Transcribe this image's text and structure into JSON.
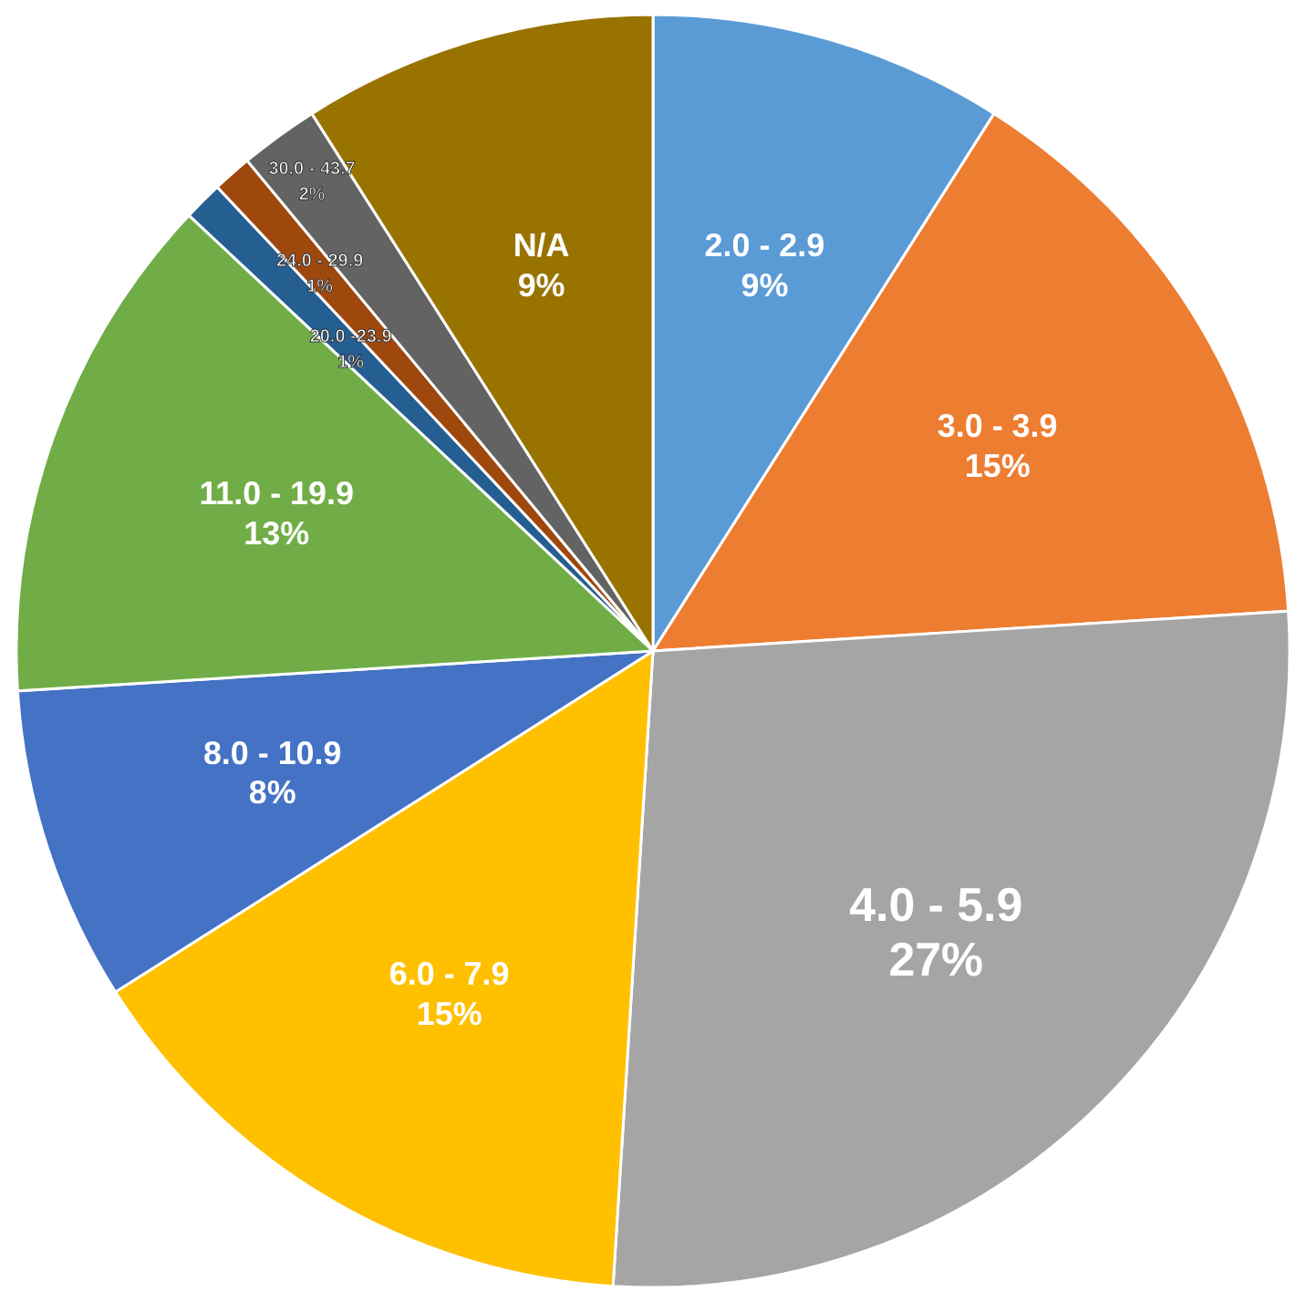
{
  "chart_data": {
    "type": "pie",
    "categories": [
      "2.0 - 2.9",
      "3.0 - 3.9",
      "4.0 - 5.9",
      "6.0 - 7.9",
      "8.0 - 10.9",
      "11.0 - 19.9",
      "20.0 -23.9",
      "24.0 - 29.9",
      "30.0 - 43.7",
      "N/A"
    ],
    "values": [
      9,
      15,
      27,
      15,
      8,
      13,
      1,
      1,
      2,
      9
    ],
    "value_labels": [
      "9%",
      "15%",
      "27%",
      "15%",
      "8%",
      "13%",
      "1%",
      "1%",
      "2%",
      "9%"
    ],
    "colors": [
      "#5b9bd5",
      "#ed7d31",
      "#a5a5a5",
      "#ffc000",
      "#4472c4",
      "#70ad47",
      "#255e91",
      "#9e480e",
      "#636363",
      "#997300"
    ],
    "legend": false,
    "data_labels": true
  }
}
